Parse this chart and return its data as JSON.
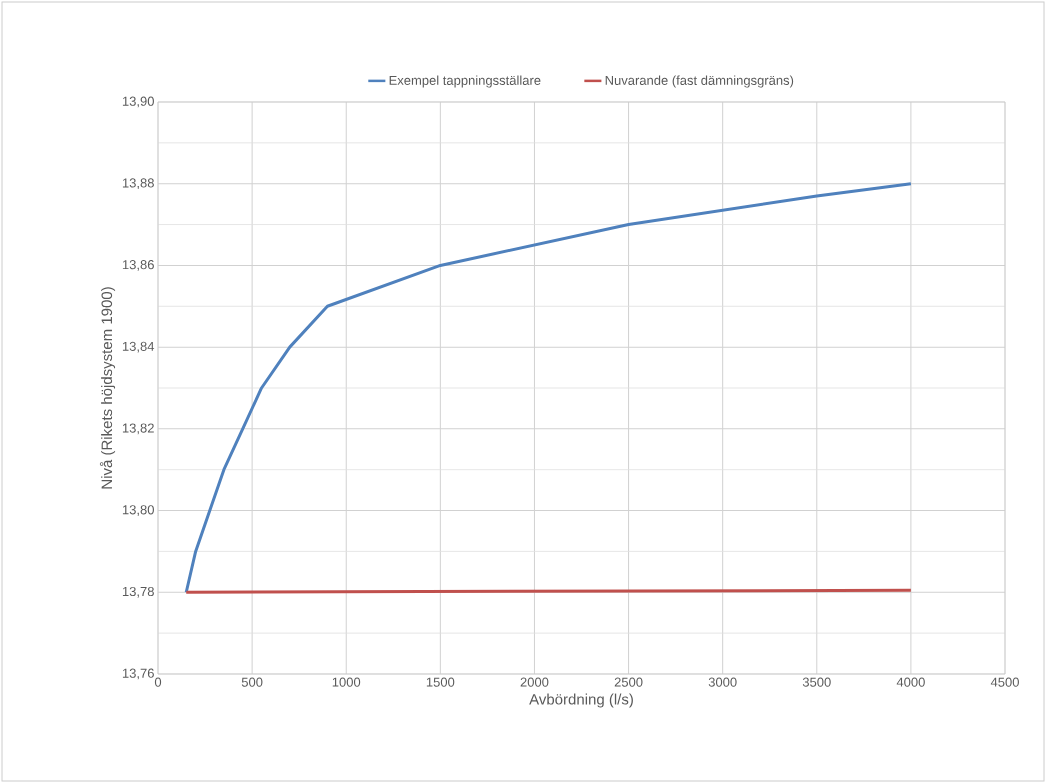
{
  "chart_data": {
    "type": "line",
    "xlabel": "Avbördning (l/s)",
    "ylabel": "Nivå (Rikets höjdsystem 1900)",
    "series": [
      {
        "name": "Exempel tappningsställare",
        "color": "#4f81bd",
        "x": [
          150,
          200,
          350,
          450,
          550,
          700,
          900,
          1500,
          2000,
          2500,
          3500,
          4000
        ],
        "values": [
          13.78,
          13.79,
          13.81,
          13.82,
          13.83,
          13.84,
          13.85,
          13.86,
          13.865,
          13.87,
          13.877,
          13.88
        ]
      },
      {
        "name": "Nuvarande (fast dämningsgräns)",
        "color": "#c0504d",
        "x": [
          150,
          4000
        ],
        "values": [
          13.78,
          13.7805
        ]
      }
    ],
    "xlim": [
      0,
      4500
    ],
    "xticks": [
      0,
      500,
      1000,
      1500,
      2000,
      2500,
      3000,
      3500,
      4000,
      4500
    ],
    "ylim": [
      13.76,
      13.9
    ],
    "yticks": [
      {
        "value": 13.76,
        "label": "13,76"
      },
      {
        "value": 13.78,
        "label": "13,78"
      },
      {
        "value": 13.8,
        "label": "13,80"
      },
      {
        "value": 13.82,
        "label": "13,82"
      },
      {
        "value": 13.84,
        "label": "13,84"
      },
      {
        "value": 13.86,
        "label": "13,86"
      },
      {
        "value": 13.88,
        "label": "13,88"
      },
      {
        "value": 13.9,
        "label": "13,90"
      }
    ],
    "grid": true,
    "legend": "top",
    "marker": "none",
    "line_style": "solid"
  }
}
